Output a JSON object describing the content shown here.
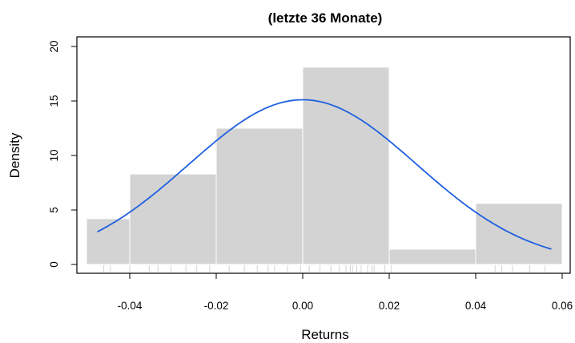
{
  "chart_data": {
    "type": "histogram",
    "title": "(letzte 36 Monate)",
    "xlabel": "Returns",
    "ylabel": "Density",
    "xlim": [
      -0.05,
      0.06
    ],
    "ylim": [
      0,
      20
    ],
    "x_ticks": [
      "-0.04",
      "-0.02",
      "0.00",
      "0.02",
      "0.04",
      "0.06"
    ],
    "x_tick_values": [
      -0.04,
      -0.02,
      0.0,
      0.02,
      0.04,
      0.06
    ],
    "y_ticks": [
      "0",
      "5",
      "10",
      "15",
      "20"
    ],
    "y_tick_values": [
      0,
      5,
      10,
      15,
      20
    ],
    "bins": [
      {
        "from": -0.05,
        "to": -0.04,
        "density": 4.2
      },
      {
        "from": -0.04,
        "to": -0.02,
        "density": 8.3
      },
      {
        "from": -0.02,
        "to": 0.0,
        "density": 12.5
      },
      {
        "from": 0.0,
        "to": 0.02,
        "density": 18.1
      },
      {
        "from": 0.02,
        "to": 0.04,
        "density": 1.4
      },
      {
        "from": 0.04,
        "to": 0.06,
        "density": 5.6
      }
    ],
    "normal_curve": {
      "mean": 0.0,
      "sd": 0.0264,
      "x_from": -0.0475,
      "x_to": 0.0575
    },
    "rug": [
      -0.046,
      -0.0445,
      -0.04,
      -0.0355,
      -0.0335,
      -0.0305,
      -0.027,
      -0.0245,
      -0.0215,
      -0.017,
      -0.0135,
      -0.0105,
      -0.008,
      -0.0065,
      -0.0035,
      -0.0005,
      0.0015,
      0.004,
      0.0065,
      0.0085,
      0.01,
      0.011,
      0.0115,
      0.0125,
      0.0135,
      0.015,
      0.016,
      0.0165,
      0.019,
      0.0205,
      0.0445,
      0.046,
      0.0485,
      0.0525,
      0.056
    ],
    "colors": {
      "bar_fill": "#d3d3d3",
      "bar_border": "#ffffff",
      "curve": "#1f5fe0",
      "rug": "#d3d3d3"
    },
    "grid": false,
    "legend": "none"
  }
}
